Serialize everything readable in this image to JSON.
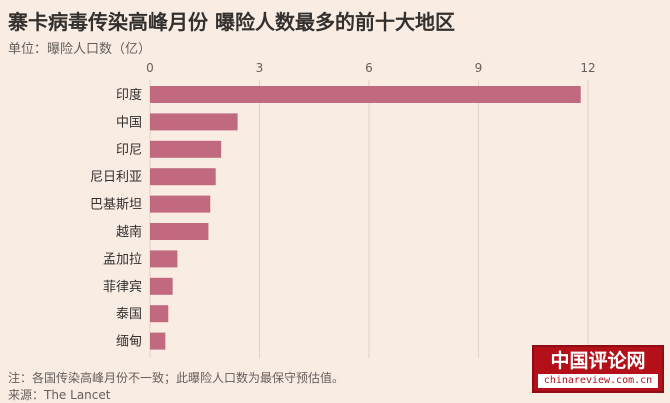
{
  "header": {
    "title": "寨卡病毒传染高峰月份 曝险人数最多的前十大地区",
    "subtitle": "单位：曝险人口数（亿）"
  },
  "footer": {
    "note": "注：各国传染高峰月份不一致；此曝险人口数为最保守预估值。",
    "source": "来源：The Lancet"
  },
  "watermark": {
    "text": "中国评论网",
    "url": "chinareview.com.cn"
  },
  "colors": {
    "bar": "#c0697f",
    "grid": "#e2d2c8",
    "background": "#f8ece3"
  },
  "chart_data": {
    "type": "bar",
    "orientation": "horizontal",
    "categories": [
      "印度",
      "中国",
      "印尼",
      "尼日利亚",
      "巴基斯坦",
      "越南",
      "孟加拉",
      "菲律宾",
      "泰国",
      "缅甸"
    ],
    "values": [
      11.8,
      2.4,
      1.95,
      1.8,
      1.65,
      1.6,
      0.75,
      0.62,
      0.5,
      0.42
    ],
    "xlim": [
      0,
      12
    ],
    "xticks": [
      0,
      3,
      6,
      9,
      12
    ],
    "grid": true,
    "title": "寨卡病毒传染高峰月份 曝险人数最多的前十大地区",
    "ylabel": "",
    "xlabel": ""
  }
}
